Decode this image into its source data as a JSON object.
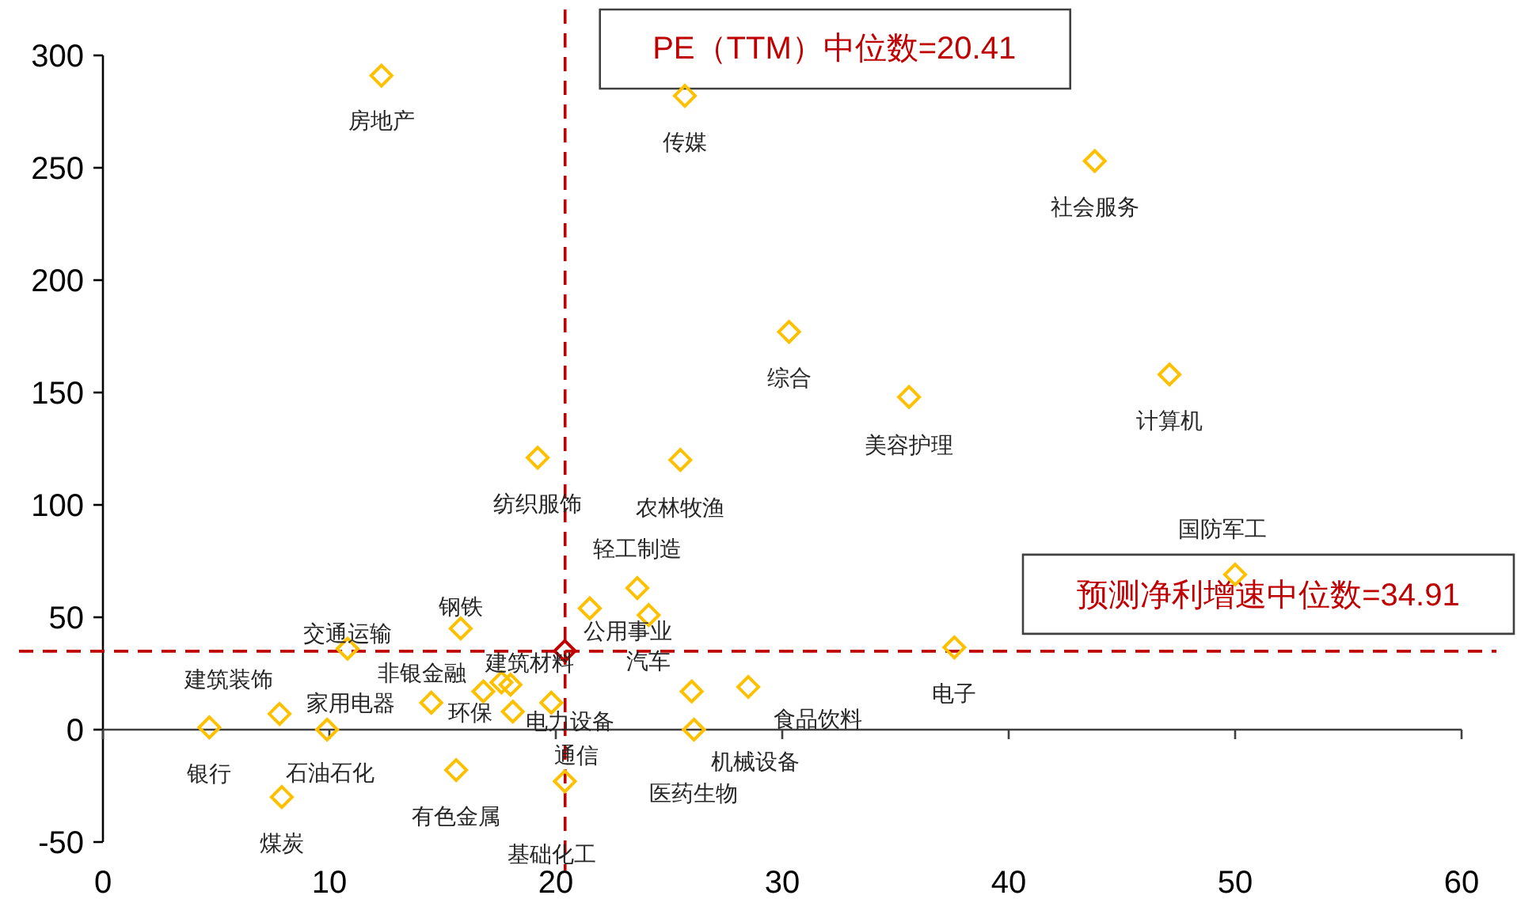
{
  "chart_data": {
    "type": "scatter",
    "marker": "diamond",
    "xlim": [
      0,
      60
    ],
    "ylim": [
      -50,
      300
    ],
    "xticks": [
      0,
      10,
      20,
      30,
      40,
      50,
      60
    ],
    "yticks": [
      -50,
      0,
      50,
      100,
      150,
      200,
      250,
      300
    ],
    "series": [
      {
        "color": "#ffc000",
        "x": [
          12.3,
          25.7,
          43.8,
          30.3,
          35.6,
          47.1,
          19.2,
          25.5,
          23.6,
          50,
          21.5,
          24.1,
          37.6,
          15.8,
          10.8,
          7.8,
          4.7,
          9.9,
          7.9,
          14.5,
          17.6,
          18.0,
          16.8,
          18.1,
          19.8,
          28.5,
          26,
          26.1,
          15.6,
          20.4
        ],
        "values": [
          291,
          282,
          253,
          177,
          148,
          158,
          121,
          120,
          63,
          69,
          54,
          51,
          36.6,
          45,
          36,
          7,
          1,
          0,
          -30,
          12,
          21,
          20,
          17,
          8,
          12,
          19,
          17,
          0,
          -18,
          -23
        ]
      },
      {
        "color": "#c00000",
        "x": [
          20.4
        ],
        "values": [
          35
        ]
      }
    ],
    "ref_lines": [
      {
        "axis": "x",
        "value": 20.41,
        "label": "PE（TTM）中位数=20.41",
        "color": "#c00000",
        "line_style": "dashed"
      },
      {
        "axis": "y",
        "value": 34.91,
        "label": "预测净利增速中位数=34.91",
        "color": "#c00000",
        "line_style": "dashed"
      }
    ],
    "annotations": [
      {
        "text": "房地产",
        "x": 12.3,
        "y": 291
      },
      {
        "text": "传媒",
        "x": 25.7,
        "y": 282
      },
      {
        "text": "社会服务",
        "x": 43.8,
        "y": 253
      },
      {
        "text": "综合",
        "x": 30.3,
        "y": 177
      },
      {
        "text": "美容护理",
        "x": 35.6,
        "y": 148
      },
      {
        "text": "计算机",
        "x": 47.1,
        "y": 158
      },
      {
        "text": "纺织服饰",
        "x": 19.2,
        "y": 121
      },
      {
        "text": "农林牧渔",
        "x": 25.5,
        "y": 120
      },
      {
        "text": "轻工制造",
        "x": 23.6,
        "y": 63
      },
      {
        "text": "国防军工",
        "x": 50,
        "y": 69
      },
      {
        "text": "公用事业",
        "x": 21.5,
        "y": 54
      },
      {
        "text": "汽车",
        "x": 24.1,
        "y": 51
      },
      {
        "text": "电子",
        "x": 37.6,
        "y": 36.6
      },
      {
        "text": "钢铁",
        "x": 15.8,
        "y": 45
      },
      {
        "text": "交通运输",
        "x": 10.8,
        "y": 36
      },
      {
        "text": "建筑装饰",
        "x": 7.8,
        "y": 7
      },
      {
        "text": "银行",
        "x": 4.7,
        "y": 1
      },
      {
        "text": "石油石化",
        "x": 9.9,
        "y": 0
      },
      {
        "text": "煤炭",
        "x": 7.9,
        "y": -30
      },
      {
        "text": "家用电器",
        "x": 14.5,
        "y": 12
      },
      {
        "text": "非银金融",
        "x": 17.6,
        "y": 21
      },
      {
        "text": "建筑材料",
        "x": 18.0,
        "y": 20
      },
      {
        "text": "环保",
        "x": 16.8,
        "y": 17
      },
      {
        "text": "电力设备",
        "x": 18.1,
        "y": 8
      },
      {
        "text": "通信",
        "x": 19.8,
        "y": 12
      },
      {
        "text": "食品饮料",
        "x": 28.5,
        "y": 19
      },
      {
        "text": "机械设备",
        "x": 26,
        "y": 17
      },
      {
        "text": "医药生物",
        "x": 26.1,
        "y": 0
      },
      {
        "text": "有色金属",
        "x": 15.6,
        "y": -18
      },
      {
        "text": "基础化工",
        "x": 20.4,
        "y": -23
      }
    ]
  }
}
